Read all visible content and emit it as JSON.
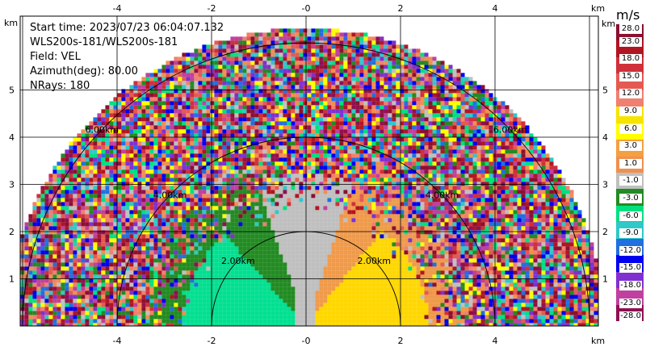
{
  "info": {
    "start_time": "Start time: 2023/07/23 06:04:07.132",
    "instrument": "WLS200s-181/WLS200s-181",
    "field": "Field: VEL",
    "azimuth": "Azimuth(deg): 80.00",
    "nrays": "NRays: 180"
  },
  "axes": {
    "x_ticks": [
      "-4",
      "-2",
      "-0",
      "2",
      "4"
    ],
    "y_ticks": [
      "1",
      "2",
      "3",
      "4",
      "5"
    ],
    "unit": "km"
  },
  "rings": {
    "labels": [
      "2.00km",
      "4.00km",
      "6.00km"
    ]
  },
  "colorbar": {
    "title": "m/s",
    "levels": [
      "28.0",
      "23.0",
      "18.0",
      "15.0",
      "12.0",
      "9.0",
      "6.0",
      "3.0",
      "1.0",
      "-1.0",
      "-3.0",
      "-6.0",
      "-9.0",
      "-12.0",
      "-15.0",
      "-18.0",
      "-23.0",
      "-28.0"
    ],
    "colors": [
      "#8B1030",
      "#B01622",
      "#D0303A",
      "#E45A52",
      "#F08070",
      "#F6E400",
      "#FFFF00",
      "#F4A040",
      "#F09050",
      "#C0C0C0",
      "#228B22",
      "#00E080",
      "#30C8C8",
      "#2070E0",
      "#0000F0",
      "#8030D0",
      "#C040A0",
      "#901050"
    ]
  }
}
